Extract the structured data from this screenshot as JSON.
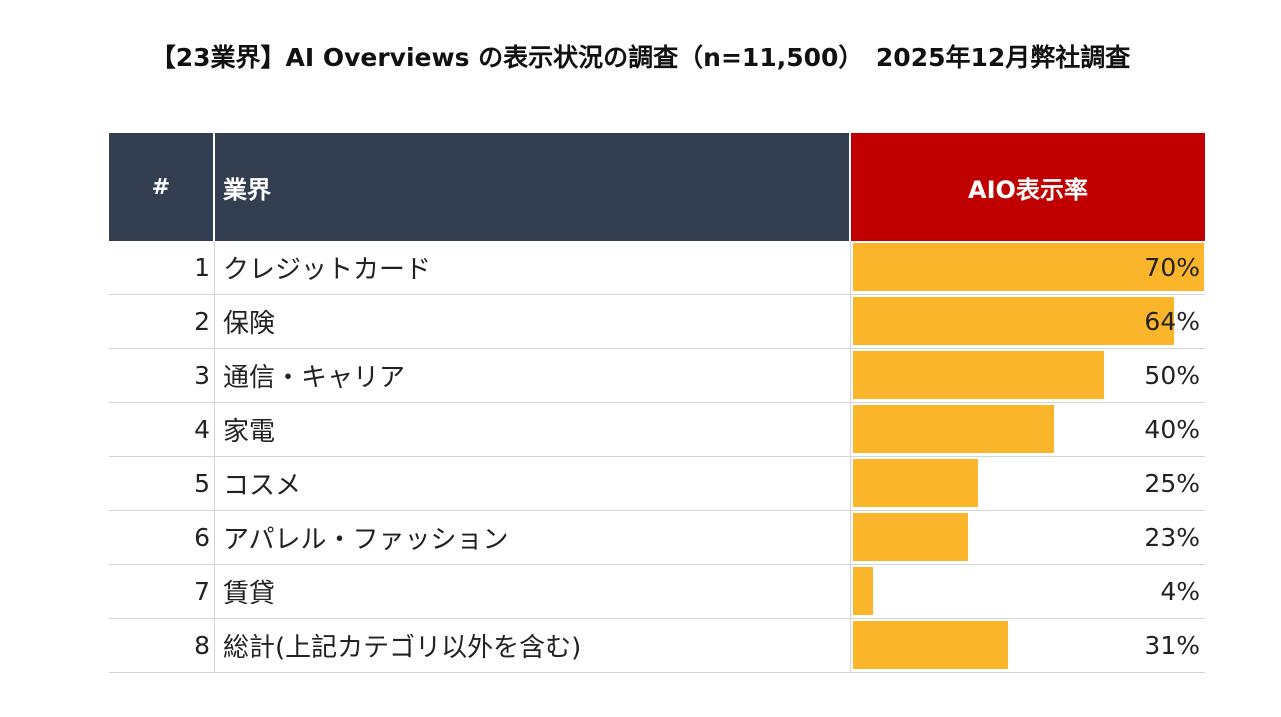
{
  "title": "【23業界】AI Overviews の表示状況の調査（n=11,500）　2025年12月弊社調査",
  "colors": {
    "header_bg": "#333f50",
    "rate_header_bg": "#c00000",
    "bar": "#fbb52b"
  },
  "table": {
    "headers": {
      "num": "#",
      "industry": "業界",
      "rate": "AIO表示率"
    }
  },
  "chart_data": {
    "type": "bar",
    "orientation": "horizontal",
    "title": "【23業界】AI Overviews の表示状況の調査（n=11,500）　2025年12月弊社調査",
    "column_headers": [
      "#",
      "業界",
      "AIO表示率"
    ],
    "categories": [
      "クレジットカード",
      "保険",
      "通信・キャリア",
      "家電",
      "コスメ",
      "アパレル・ファッション",
      "賃貸",
      "総計(上記カテゴリ以外を含む)"
    ],
    "ranks": [
      "1",
      "2",
      "3",
      "4",
      "5",
      "6",
      "7",
      "8"
    ],
    "values": [
      70,
      64,
      50,
      40,
      25,
      23,
      4,
      31
    ],
    "value_labels": [
      "70%",
      "64%",
      "50%",
      "40%",
      "25%",
      "23%",
      "4%",
      "31%"
    ],
    "unit": "%",
    "xlim": [
      0,
      70
    ]
  }
}
